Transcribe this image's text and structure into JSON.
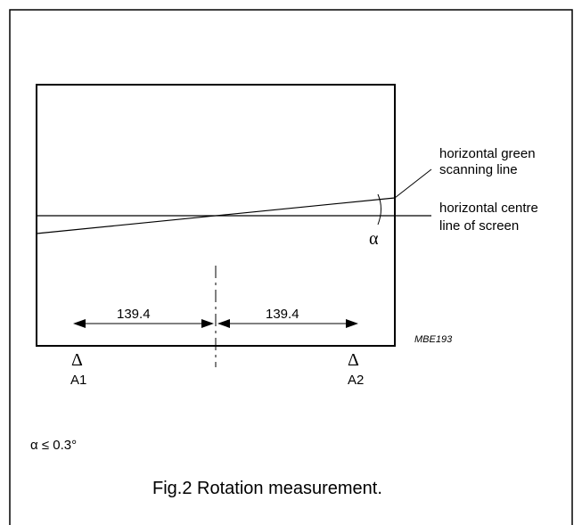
{
  "labels": {
    "green_line_1": "horizontal green",
    "green_line_2": "scanning line",
    "centre_line_1": "horizontal centre",
    "centre_line_2": "line of screen",
    "angle_symbol": "α",
    "dim_left": "139.4",
    "dim_right": "139.4",
    "ref_code": "MBE193",
    "marker_symbol": "Δ",
    "marker_a1": "A1",
    "marker_a2": "A2",
    "tolerance": "α ≤ 0.3°",
    "caption": "Fig.2  Rotation measurement."
  }
}
